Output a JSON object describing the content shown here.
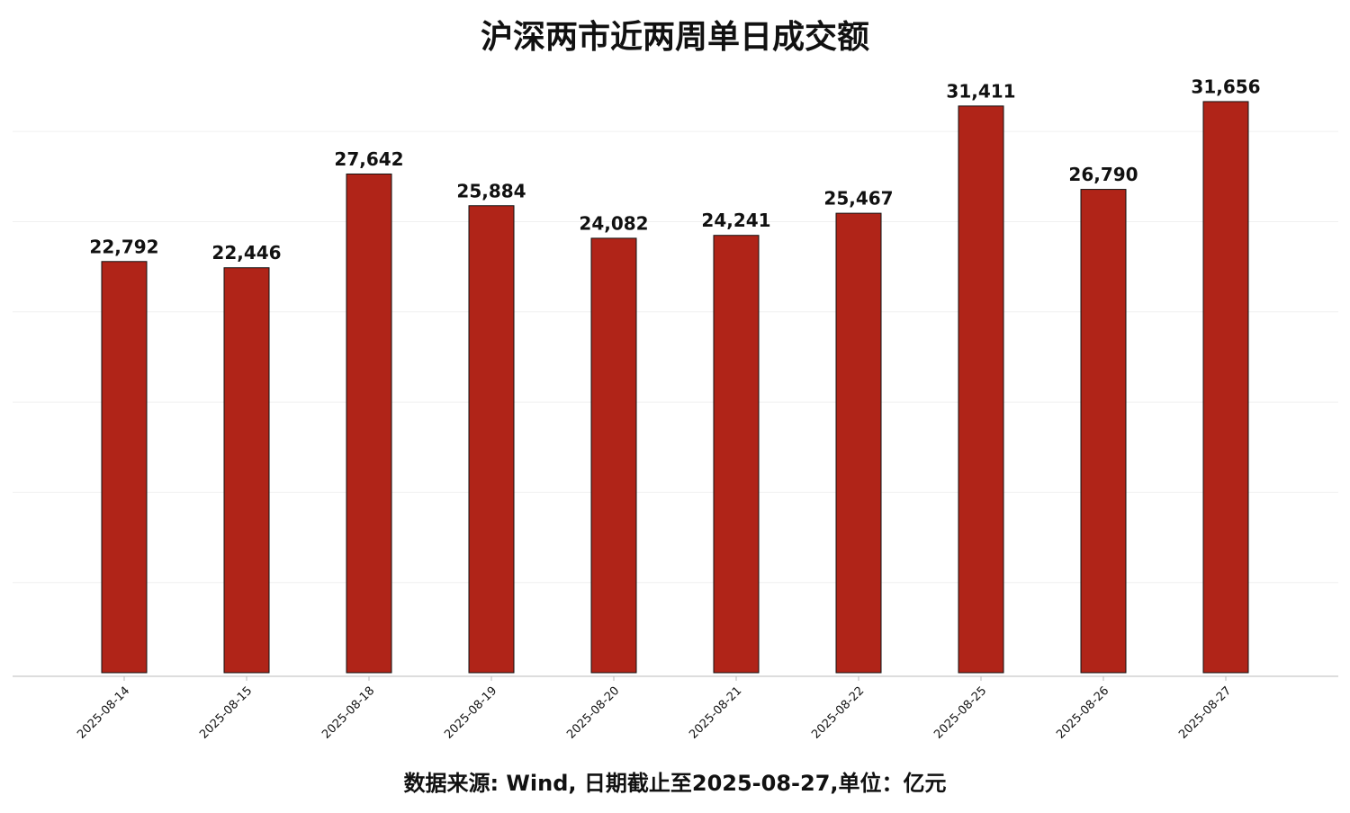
{
  "chart_data": {
    "type": "bar",
    "title": "沪深两市近两周单日成交额",
    "note": "数据来源: Wind, 日期截止至2025-08-27,单位：亿元",
    "categories": [
      "2025-08-14",
      "2025-08-15",
      "2025-08-18",
      "2025-08-19",
      "2025-08-20",
      "2025-08-21",
      "2025-08-22",
      "2025-08-25",
      "2025-08-26",
      "2025-08-27"
    ],
    "values": [
      22792,
      22446,
      27642,
      25884,
      24082,
      24241,
      25467,
      31411,
      26790,
      31656
    ],
    "value_labels": [
      "22,792",
      "22,446",
      "27,642",
      "25,884",
      "24,082",
      "24,241",
      "25,467",
      "31,411",
      "26,790",
      "31,656"
    ],
    "color": "#b02418",
    "ylim": [
      0,
      33000
    ],
    "yticks": [
      5000,
      10000,
      15000,
      20000,
      25000,
      30000
    ],
    "grid": true
  }
}
